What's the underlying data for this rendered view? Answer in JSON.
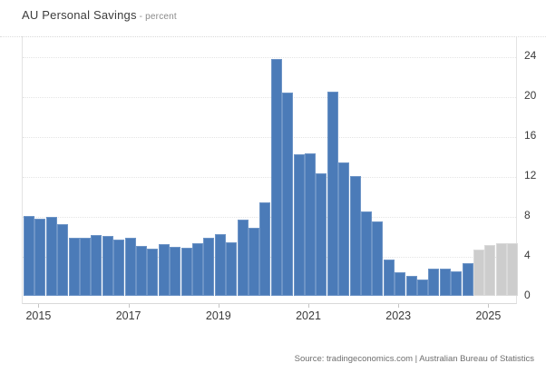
{
  "header": {
    "title": "AU Personal Savings",
    "subtitle": "- percent"
  },
  "footer": {
    "source_text": "Source: tradingeconomics.com | Australian Bureau of Statistics"
  },
  "colors": {
    "bar_actual": "#4b7bb8",
    "bar_forecast": "#cdcdcd",
    "gridline": "#e4e4e4",
    "axis_text": "#3a3a3a"
  },
  "chart_data": {
    "type": "bar",
    "title": "AU Personal Savings",
    "ylabel": "percent",
    "ylim": [
      0,
      26
    ],
    "yticks": [
      0,
      4,
      8,
      12,
      16,
      20,
      24
    ],
    "xticks": [
      "2015",
      "2017",
      "2019",
      "2021",
      "2023",
      "2025"
    ],
    "legend_position": "none",
    "grid": "horizontal-dotted",
    "y_axis_side": "right",
    "bars": [
      {
        "label": "2014 Q4",
        "value": 7.9,
        "forecast": false
      },
      {
        "label": "2015 Q1",
        "value": 7.6,
        "forecast": false
      },
      {
        "label": "2015 Q2",
        "value": 7.8,
        "forecast": false
      },
      {
        "label": "2015 Q3",
        "value": 7.1,
        "forecast": false
      },
      {
        "label": "2015 Q4",
        "value": 5.7,
        "forecast": false
      },
      {
        "label": "2016 Q1",
        "value": 5.7,
        "forecast": false
      },
      {
        "label": "2016 Q2",
        "value": 6.0,
        "forecast": false
      },
      {
        "label": "2016 Q3",
        "value": 5.9,
        "forecast": false
      },
      {
        "label": "2016 Q4",
        "value": 5.5,
        "forecast": false
      },
      {
        "label": "2017 Q1",
        "value": 5.7,
        "forecast": false
      },
      {
        "label": "2017 Q2",
        "value": 4.9,
        "forecast": false
      },
      {
        "label": "2017 Q3",
        "value": 4.6,
        "forecast": false
      },
      {
        "label": "2017 Q4",
        "value": 5.1,
        "forecast": false
      },
      {
        "label": "2018 Q1",
        "value": 4.8,
        "forecast": false
      },
      {
        "label": "2018 Q2",
        "value": 4.7,
        "forecast": false
      },
      {
        "label": "2018 Q3",
        "value": 5.2,
        "forecast": false
      },
      {
        "label": "2018 Q4",
        "value": 5.7,
        "forecast": false
      },
      {
        "label": "2019 Q1",
        "value": 6.1,
        "forecast": false
      },
      {
        "label": "2019 Q2",
        "value": 5.3,
        "forecast": false
      },
      {
        "label": "2019 Q3",
        "value": 7.5,
        "forecast": false
      },
      {
        "label": "2019 Q4",
        "value": 6.7,
        "forecast": false
      },
      {
        "label": "2020 Q1",
        "value": 9.3,
        "forecast": false
      },
      {
        "label": "2020 Q2",
        "value": 23.6,
        "forecast": false
      },
      {
        "label": "2020 Q3",
        "value": 20.3,
        "forecast": false
      },
      {
        "label": "2020 Q4",
        "value": 14.1,
        "forecast": false
      },
      {
        "label": "2021 Q1",
        "value": 14.2,
        "forecast": false
      },
      {
        "label": "2021 Q2",
        "value": 12.2,
        "forecast": false
      },
      {
        "label": "2021 Q3",
        "value": 20.4,
        "forecast": false
      },
      {
        "label": "2021 Q4",
        "value": 13.3,
        "forecast": false
      },
      {
        "label": "2022 Q1",
        "value": 11.9,
        "forecast": false
      },
      {
        "label": "2022 Q2",
        "value": 8.4,
        "forecast": false
      },
      {
        "label": "2022 Q3",
        "value": 7.4,
        "forecast": false
      },
      {
        "label": "2022 Q4",
        "value": 3.5,
        "forecast": false
      },
      {
        "label": "2023 Q1",
        "value": 2.3,
        "forecast": false
      },
      {
        "label": "2023 Q2",
        "value": 1.9,
        "forecast": false
      },
      {
        "label": "2023 Q3",
        "value": 1.5,
        "forecast": false
      },
      {
        "label": "2023 Q4",
        "value": 2.6,
        "forecast": false
      },
      {
        "label": "2024 Q1",
        "value": 2.6,
        "forecast": false
      },
      {
        "label": "2024 Q2",
        "value": 2.4,
        "forecast": false
      },
      {
        "label": "2024 Q3",
        "value": 3.2,
        "forecast": false
      },
      {
        "label": "2024 Q4",
        "value": 4.5,
        "forecast": true
      },
      {
        "label": "2025 Q1",
        "value": 5.0,
        "forecast": true
      },
      {
        "label": "2025 Q2",
        "value": 5.2,
        "forecast": true
      },
      {
        "label": "2025 Q3",
        "value": 5.2,
        "forecast": true
      }
    ]
  }
}
